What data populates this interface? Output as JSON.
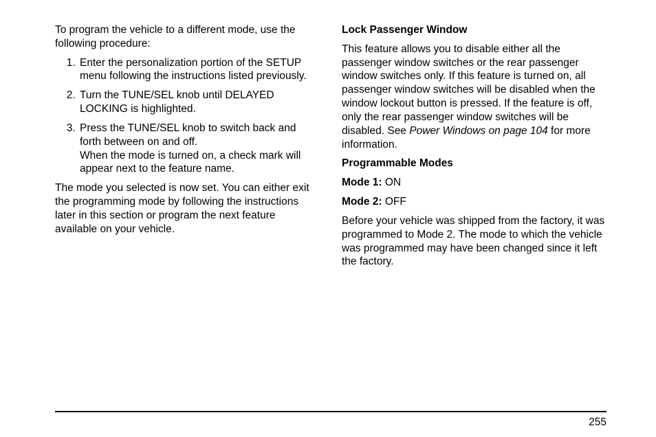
{
  "left": {
    "intro": "To program the vehicle to a different mode, use the following procedure:",
    "steps": [
      "Enter the personalization portion of the SETUP menu following the instructions listed previously.",
      "Turn the TUNE/SEL knob until DELAYED LOCKING is highlighted.",
      "Press the TUNE/SEL knob to switch back and forth between on and off."
    ],
    "step3_sub": "When the mode is turned on, a check mark will appear next to the feature name.",
    "closing": "The mode you selected is now set. You can either exit the programming mode by following the instructions later in this section or program the next feature available on your vehicle."
  },
  "right": {
    "heading": "Lock Passenger Window",
    "body_pre": "This feature allows you to disable either all the passenger window switches or the rear passenger window switches only. If this feature is turned on, all passenger window switches will be disabled when the window lockout button is pressed. If the feature is off, only the rear passenger window switches will be disabled. See ",
    "ref": "Power Windows on page 104",
    "body_post": " for more information.",
    "prog_modes": "Programmable Modes",
    "mode1_label": "Mode 1:",
    "mode1_value": "ON",
    "mode2_label": "Mode 2:",
    "mode2_value": "OFF",
    "factory": "Before your vehicle was shipped from the factory, it was programmed to Mode 2. The mode to which the vehicle was programmed may have been changed since it left the factory."
  },
  "page_number": "255"
}
